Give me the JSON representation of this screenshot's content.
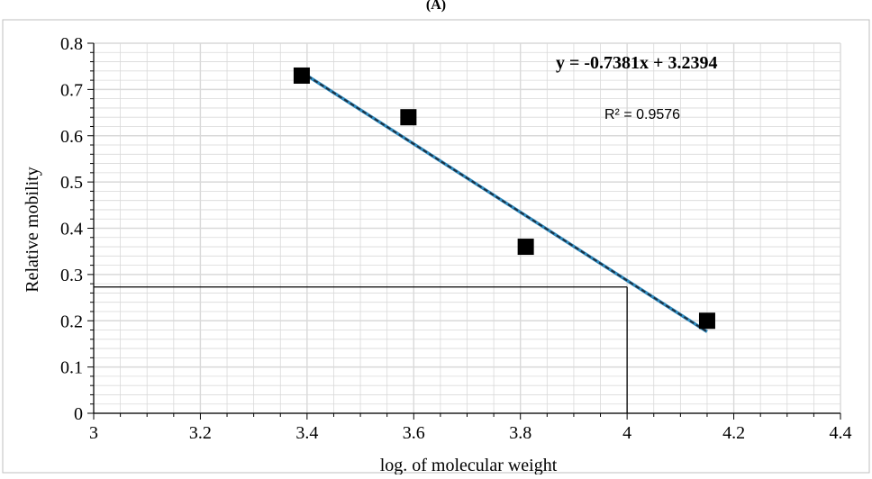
{
  "chart_data": {
    "type": "scatter",
    "title": "",
    "panel_label": "(A)",
    "xlabel": "log. of molecular weight",
    "ylabel": "Relative mobility",
    "xlim": [
      3,
      4.4
    ],
    "ylim": [
      0,
      0.8
    ],
    "x_ticks": [
      "3",
      "3.2",
      "3.4",
      "3.6",
      "3.8",
      "4",
      "4.2",
      "4.4"
    ],
    "y_ticks": [
      "0",
      "0.1",
      "0.2",
      "0.3",
      "0.4",
      "0.5",
      "0.6",
      "0.7",
      "0.8"
    ],
    "grid": true,
    "points": [
      {
        "x": 3.39,
        "y": 0.73
      },
      {
        "x": 3.59,
        "y": 0.64
      },
      {
        "x": 3.81,
        "y": 0.36
      },
      {
        "x": 4.15,
        "y": 0.2
      }
    ],
    "trendline": {
      "slope": -0.7381,
      "intercept": 3.2394,
      "x_start": 3.39,
      "x_end": 4.15,
      "color": "#2e8bc0",
      "equation": "y = -0.7381x + 3.2394",
      "r_squared": "R² = 0.9576"
    },
    "reference_lines": {
      "x": 4.0,
      "y": 0.273
    },
    "marker_color": "#000000",
    "grid_color": "#d9d9d9"
  }
}
